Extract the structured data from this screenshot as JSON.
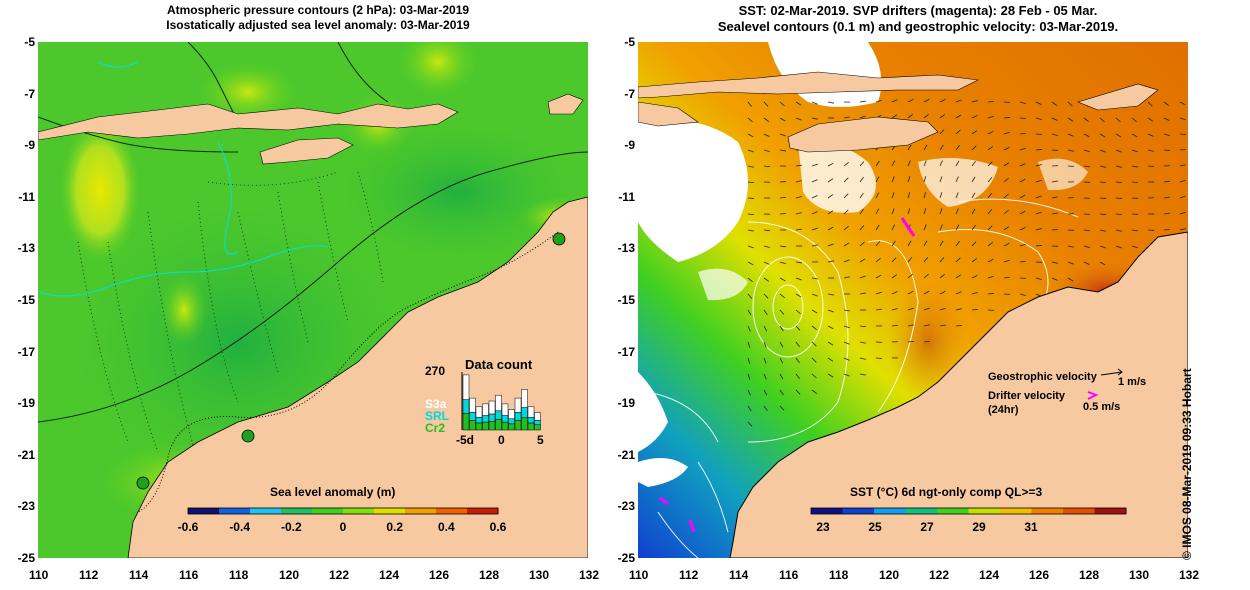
{
  "left_panel": {
    "title_line1": "Atmospheric pressure contours (2 hPa): 03-Mar-2019",
    "title_line2": "Isostatically adjusted sea level anomaly: 03-Mar-2019",
    "colorbar_label": "Sea level anomaly (m)",
    "colorbar_ticks": [
      "-0.6",
      "-0.4",
      "-0.2",
      "0",
      "0.2",
      "0.4",
      "0.6"
    ],
    "data_count": {
      "title": "Data count",
      "max_label": "270",
      "series_labels": [
        "S3a",
        "SRL",
        "Cr2"
      ],
      "series_colors": [
        "#ffffff",
        "#00d8e0",
        "#20c020"
      ],
      "x_ticks": [
        "-5d",
        "0",
        "5"
      ]
    }
  },
  "right_panel": {
    "title_line1": "SST: 02-Mar-2019. SVP drifters (magenta): 28 Feb - 05 Mar.",
    "title_line2": "Sealevel contours (0.1 m) and geostrophic velocity: 03-Mar-2019.",
    "colorbar_label": "SST (°C) 6d ngt-only comp QL>=3",
    "colorbar_ticks": [
      "23",
      "25",
      "27",
      "29",
      "31"
    ],
    "legend": {
      "geo_label": "Geostrophic velocity",
      "geo_scale": "1 m/s",
      "drifter_label_line1": "Drifter velocity",
      "drifter_label_line2": "(24hr)",
      "drifter_scale": "0.5 m/s",
      "drifter_color": "#ff00ff"
    }
  },
  "axes": {
    "x_ticks": [
      "110",
      "112",
      "114",
      "116",
      "118",
      "120",
      "122",
      "124",
      "126",
      "128",
      "130",
      "132"
    ],
    "y_ticks": [
      "-5",
      "-7",
      "-9",
      "-11",
      "-13",
      "-15",
      "-17",
      "-19",
      "-21",
      "-23",
      "-25"
    ]
  },
  "credit": "© IMOS 08-Mar-2019 09:33 Hobart",
  "colors": {
    "land": "#f7c9a0",
    "sla_cmap": [
      "#101070",
      "#1060e0",
      "#20c0f0",
      "#20c060",
      "#40d020",
      "#80e010",
      "#e0e000",
      "#f0a000",
      "#f06000",
      "#c02000"
    ],
    "sst_cmap": [
      "#101080",
      "#1040d0",
      "#10a0f0",
      "#10c080",
      "#40d020",
      "#c0e000",
      "#f0c000",
      "#f08000",
      "#e05000",
      "#a01010"
    ]
  }
}
